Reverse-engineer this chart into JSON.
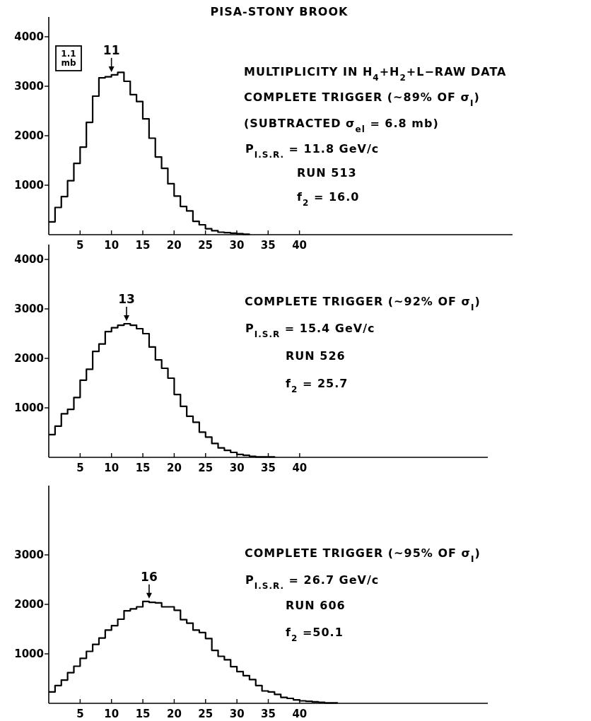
{
  "chart_data": [
    {
      "type": "step",
      "title": "PISA-STONY BROOK",
      "color": "#000000",
      "x": [
        0,
        1,
        2,
        3,
        4,
        5,
        6,
        7,
        8,
        9,
        10,
        11,
        12,
        13,
        14,
        15,
        16,
        17,
        18,
        19,
        20,
        21,
        22,
        23,
        24,
        25,
        26,
        27,
        28,
        29,
        30,
        31,
        32
      ],
      "values": [
        260,
        550,
        770,
        1090,
        1440,
        1770,
        2270,
        2800,
        3170,
        3190,
        3230,
        3280,
        3100,
        2830,
        2690,
        2340,
        1950,
        1570,
        1340,
        1030,
        780,
        570,
        480,
        270,
        200,
        120,
        80,
        50,
        40,
        30,
        20,
        10,
        0
      ],
      "xlim": [
        0,
        74
      ],
      "ylim": [
        0,
        4400
      ],
      "xticks": [
        5,
        10,
        15,
        20,
        25,
        30,
        35,
        40
      ],
      "yticks": [
        1000,
        2000,
        3000,
        4000
      ],
      "annotations": [
        "1.1 mb",
        "MULTIPLICITY IN H$_{4}$+H$_{2}$+L−RAW DATA",
        "COMPLETE TRIGGER (~89% OF σ$_{I}$)",
        "(SUBTRACTED σ$_{el}$ = 6.8 mb)",
        "P$_{I.S.R.}$ = 11.8 GeV/c",
        "RUN 513",
        "f$_{2}$ = 16.0",
        {
          "text": "11",
          "x": 10,
          "y": 3230
        }
      ]
    },
    {
      "type": "step",
      "color": "#000000",
      "x": [
        0,
        1,
        2,
        3,
        4,
        5,
        6,
        7,
        8,
        9,
        10,
        11,
        12,
        13,
        14,
        15,
        16,
        17,
        18,
        19,
        20,
        21,
        22,
        23,
        24,
        25,
        26,
        27,
        28,
        29,
        30,
        31,
        32,
        33,
        34,
        35,
        36
      ],
      "values": [
        460,
        630,
        880,
        970,
        1210,
        1560,
        1780,
        2140,
        2290,
        2540,
        2620,
        2670,
        2700,
        2670,
        2600,
        2500,
        2230,
        1970,
        1800,
        1600,
        1270,
        1030,
        830,
        710,
        510,
        410,
        280,
        190,
        140,
        100,
        60,
        40,
        20,
        10,
        10,
        10,
        0
      ],
      "xlim": [
        0,
        70
      ],
      "ylim": [
        0,
        4300
      ],
      "xticks": [
        5,
        10,
        15,
        20,
        25,
        30,
        35,
        40
      ],
      "yticks": [
        1000,
        2000,
        3000,
        4000
      ],
      "annotations": [
        "COMPLETE TRIGGER (~92% OF σ$_{I}$)",
        "P$_{I.S.R}$ = 15.4 GeV/c",
        "RUN 526",
        "f$_{2}$ = 25.7",
        {
          "text": "13",
          "x": 12.4,
          "y": 2700
        }
      ]
    },
    {
      "type": "step",
      "color": "#000000",
      "x": [
        0,
        1,
        2,
        3,
        4,
        5,
        6,
        7,
        8,
        9,
        10,
        11,
        12,
        13,
        14,
        15,
        16,
        17,
        18,
        19,
        20,
        21,
        22,
        23,
        24,
        25,
        26,
        27,
        28,
        29,
        30,
        31,
        32,
        33,
        34,
        35,
        36,
        37,
        38,
        39,
        40,
        41,
        42,
        43,
        44,
        45,
        46
      ],
      "values": [
        230,
        360,
        470,
        620,
        750,
        910,
        1050,
        1190,
        1320,
        1480,
        1570,
        1700,
        1870,
        1910,
        1950,
        2060,
        2040,
        2030,
        1950,
        1950,
        1880,
        1690,
        1620,
        1480,
        1430,
        1310,
        1070,
        950,
        880,
        740,
        640,
        560,
        480,
        360,
        250,
        230,
        180,
        120,
        100,
        70,
        50,
        40,
        30,
        20,
        10,
        10,
        0
      ],
      "xlim": [
        0,
        70
      ],
      "ylim": [
        0,
        4400
      ],
      "xticks": [
        5,
        10,
        15,
        20,
        25,
        30,
        35,
        40
      ],
      "yticks": [
        1000,
        2000,
        3000
      ],
      "annotations": [
        "COMPLETE TRIGGER (~95% OF σ$_{I}$)",
        "P$_{I.S.R.}$ = 26.7 GeV/c",
        "RUN 606",
        "f$_{2}$ =50.1",
        {
          "text": "16",
          "x": 16,
          "y": 2060
        }
      ]
    }
  ]
}
